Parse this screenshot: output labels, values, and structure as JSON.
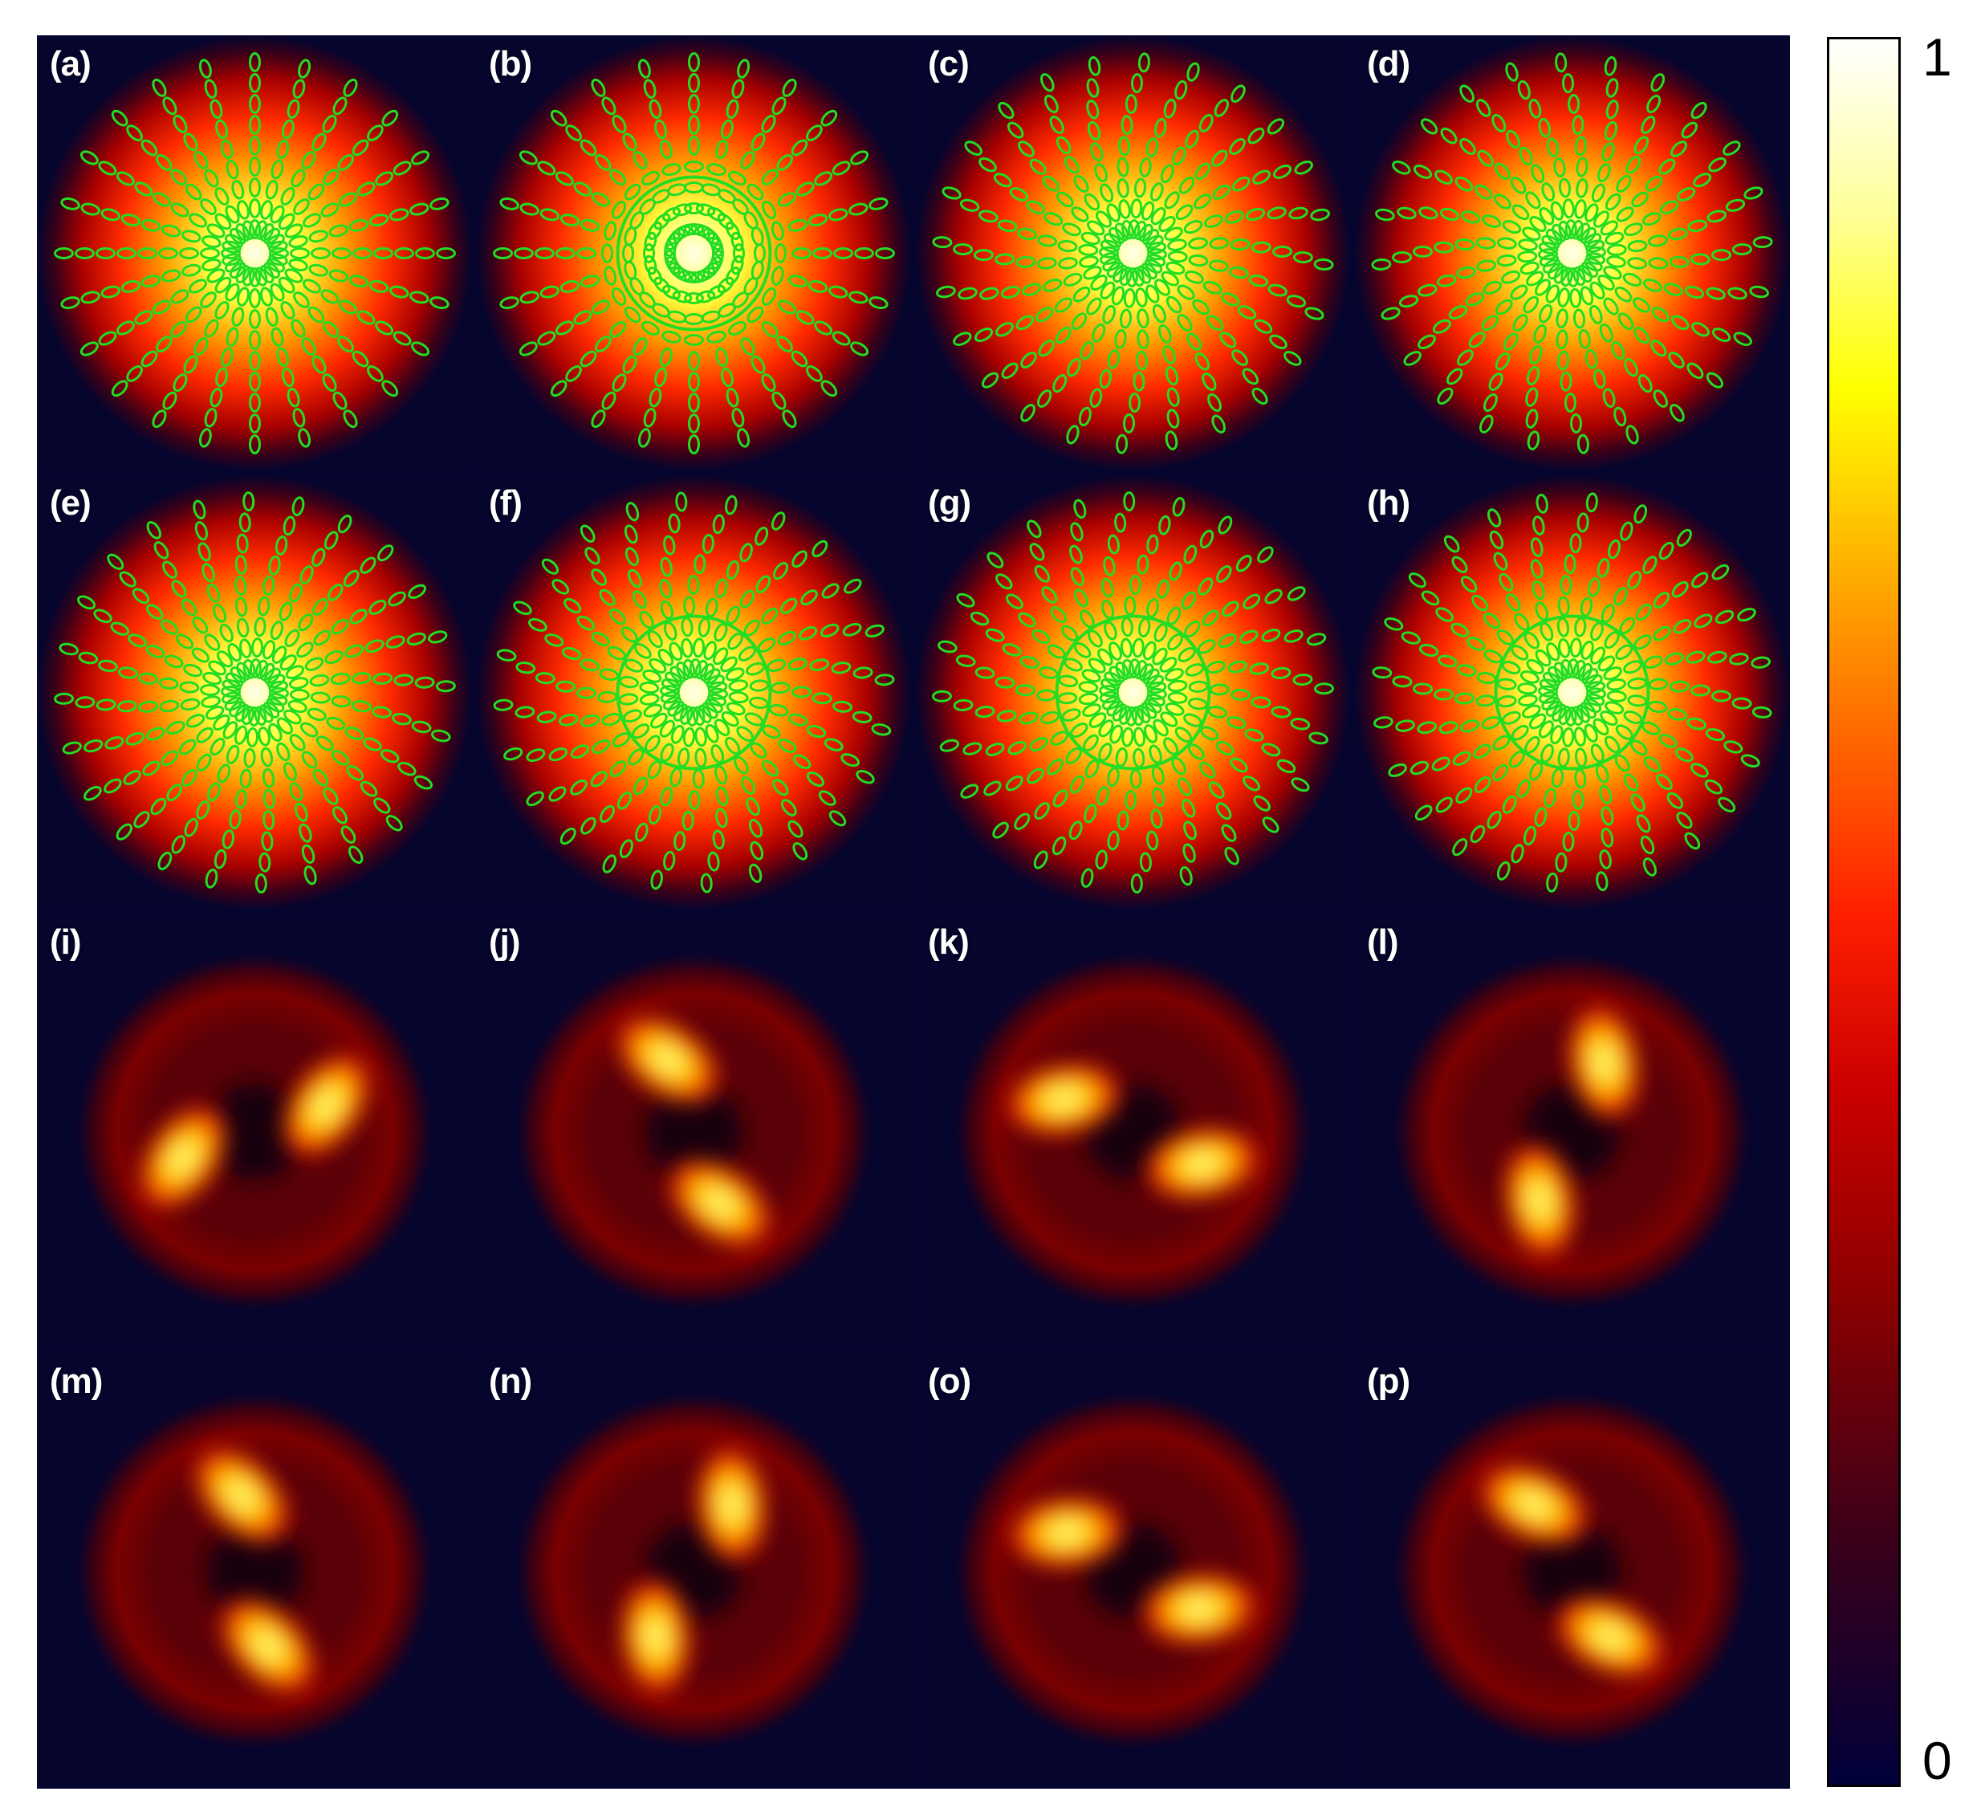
{
  "figure": {
    "panels": [
      {
        "label": "(a)",
        "kind": "polarization",
        "pattern": "radial-centered"
      },
      {
        "label": "(b)",
        "kind": "polarization",
        "pattern": "ring"
      },
      {
        "label": "(c)",
        "kind": "polarization",
        "pattern": "swirl-right"
      },
      {
        "label": "(d)",
        "kind": "polarization",
        "pattern": "swirl-left"
      },
      {
        "label": "(e)",
        "kind": "polarization",
        "pattern": "tilted-radial"
      },
      {
        "label": "(f)",
        "kind": "polarization",
        "pattern": "ring-swirl"
      },
      {
        "label": "(g)",
        "kind": "polarization",
        "pattern": "ring-swirl-right"
      },
      {
        "label": "(h)",
        "kind": "polarization",
        "pattern": "distorted"
      },
      {
        "label": "(i)",
        "kind": "intensity",
        "pattern": "two-lobe-spiral-ccw"
      },
      {
        "label": "(j)",
        "kind": "intensity",
        "pattern": "two-lobe-spiral-cw"
      },
      {
        "label": "(k)",
        "kind": "intensity",
        "pattern": "two-lobe-spiral-ccw-diag"
      },
      {
        "label": "(l)",
        "kind": "intensity",
        "pattern": "two-lobe-spiral-cw-diag"
      },
      {
        "label": "(m)",
        "kind": "intensity",
        "pattern": "two-lobe-noisy"
      },
      {
        "label": "(n)",
        "kind": "intensity",
        "pattern": "two-lobe-noisy"
      },
      {
        "label": "(o)",
        "kind": "intensity",
        "pattern": "two-lobe-noisy"
      },
      {
        "label": "(p)",
        "kind": "intensity",
        "pattern": "two-lobe-noisy"
      }
    ]
  },
  "colorbar": {
    "max_label": "1",
    "min_label": "0",
    "colormap": "hot",
    "ellipse_color": "#22dd22"
  }
}
